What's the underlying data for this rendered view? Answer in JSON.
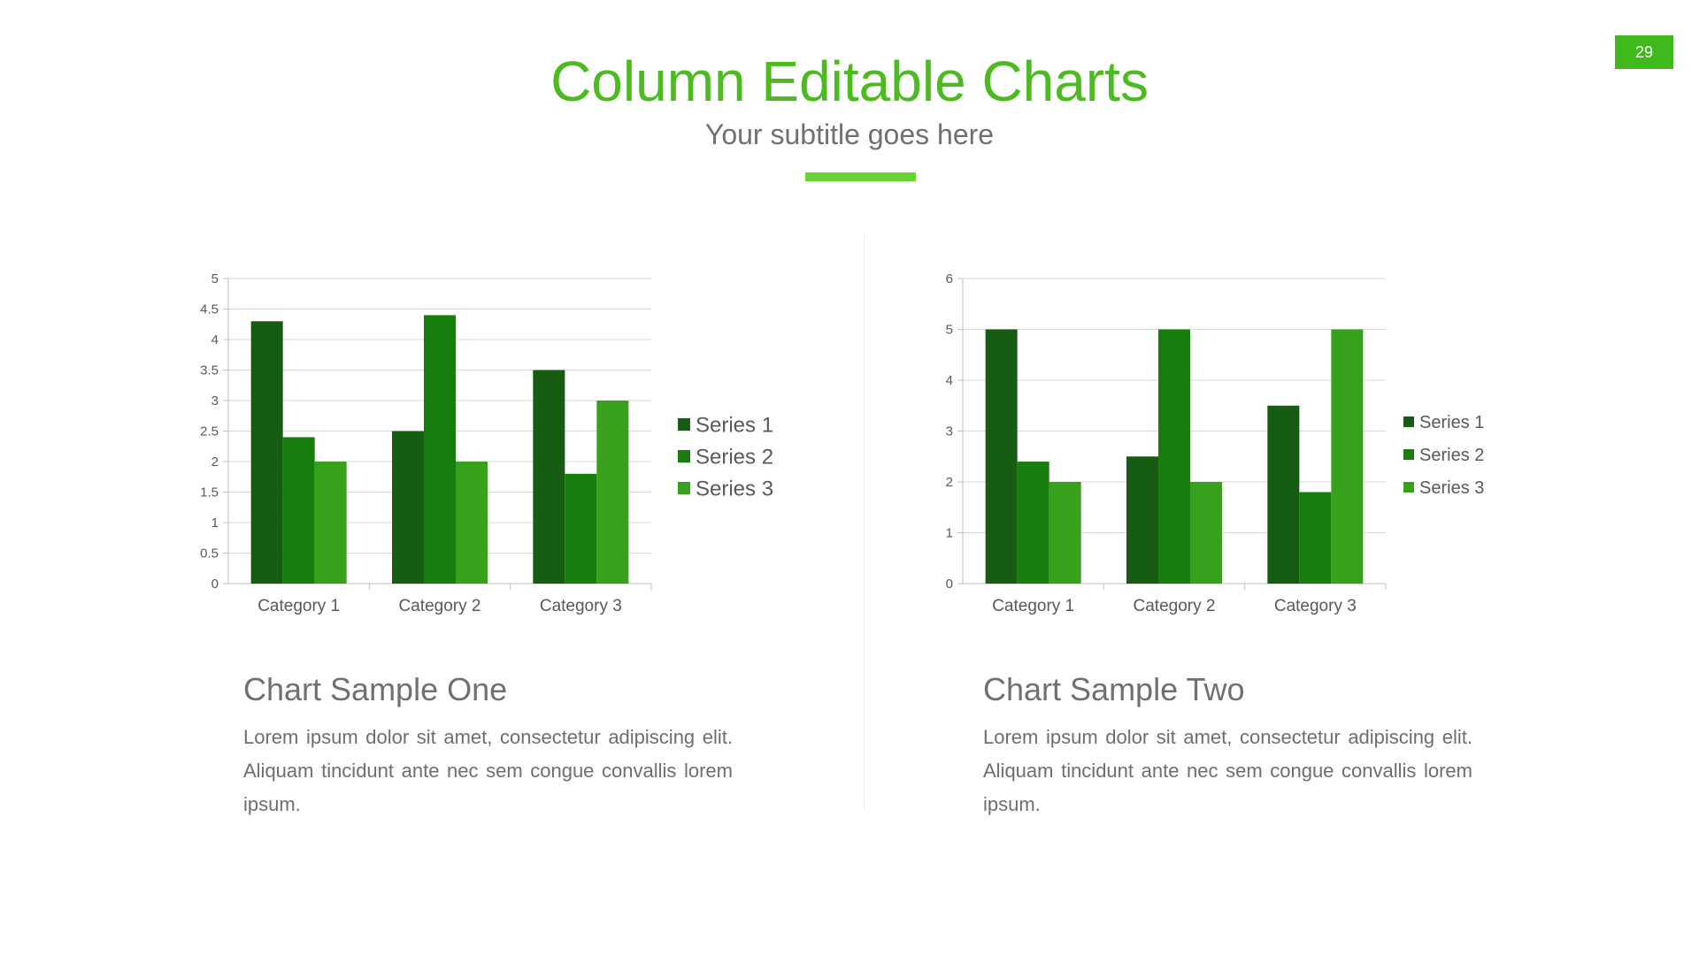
{
  "slide": {
    "page_number": "29",
    "title": "Column Editable Charts",
    "subtitle": "Your subtitle goes here"
  },
  "colors": {
    "accent": "#4cbb1f",
    "series": [
      "#165c12",
      "#177e0d",
      "#38a11b"
    ]
  },
  "sections": [
    {
      "title": "Chart Sample One",
      "body": "Lorem ipsum dolor sit amet, consectetur adipiscing elit. Aliquam tincidunt ante nec sem congue convallis lorem ipsum."
    },
    {
      "title": "Chart Sample Two",
      "body": "Lorem ipsum dolor sit amet, consectetur adipiscing elit. Aliquam tincidunt ante nec sem congue convallis lorem ipsum."
    }
  ],
  "chart_data": [
    {
      "type": "bar",
      "title": "",
      "xlabel": "",
      "ylabel": "",
      "categories": [
        "Category 1",
        "Category 2",
        "Category 3"
      ],
      "series": [
        {
          "name": "Series 1",
          "values": [
            4.3,
            2.5,
            3.5
          ]
        },
        {
          "name": "Series 2",
          "values": [
            2.4,
            4.4,
            1.8
          ]
        },
        {
          "name": "Series 3",
          "values": [
            2,
            2,
            3
          ]
        }
      ],
      "ylim": [
        0,
        5
      ],
      "yticks": [
        "0",
        "0.5",
        "1",
        "1.5",
        "2",
        "2.5",
        "3",
        "3.5",
        "4",
        "4.5",
        "5"
      ],
      "grid": true,
      "legend": "right"
    },
    {
      "type": "bar",
      "title": "",
      "xlabel": "",
      "ylabel": "",
      "categories": [
        "Category 1",
        "Category 2",
        "Category 3"
      ],
      "series": [
        {
          "name": "Series 1",
          "values": [
            5,
            2.5,
            3.5
          ]
        },
        {
          "name": "Series 2",
          "values": [
            2.4,
            5,
            1.8
          ]
        },
        {
          "name": "Series 3",
          "values": [
            2,
            2,
            5
          ]
        }
      ],
      "ylim": [
        0,
        6
      ],
      "yticks": [
        "0",
        "1",
        "2",
        "3",
        "4",
        "5",
        "6"
      ],
      "grid": true,
      "legend": "right"
    }
  ]
}
